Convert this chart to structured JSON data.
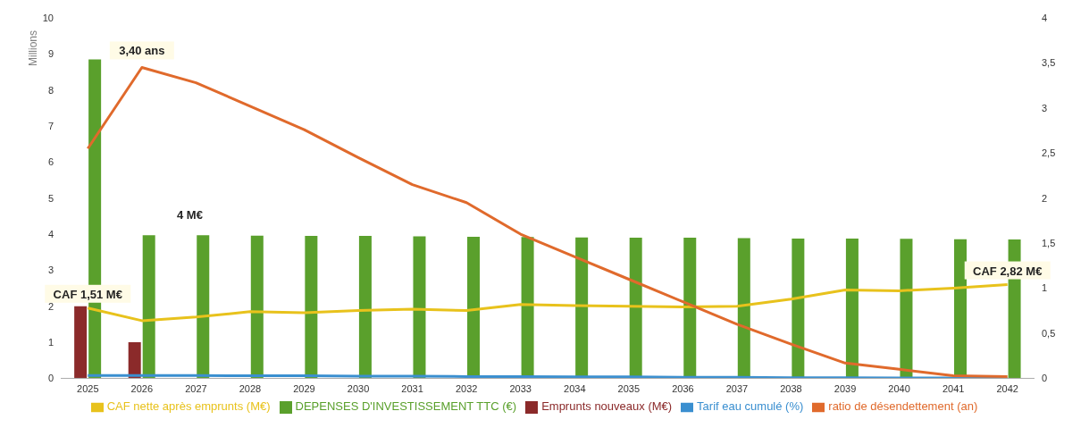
{
  "chart_data": {
    "type": "bar",
    "ylabel": "Millions",
    "categories": [
      "2025",
      "2026",
      "2027",
      "2028",
      "2029",
      "2030",
      "2031",
      "2032",
      "2033",
      "2034",
      "2035",
      "2036",
      "2037",
      "2038",
      "2039",
      "2040",
      "2041",
      "2042"
    ],
    "series": [
      {
        "name": "Emprunts nouveaux (M€)",
        "color": "#8b2a2a",
        "values": [
          2,
          1,
          null,
          null,
          null,
          null,
          null,
          null,
          null,
          null,
          null,
          null,
          null,
          null,
          null,
          null,
          null,
          null
        ]
      },
      {
        "name": "DEPENSES D'INVESTISSEMENT TTC (€)",
        "color": "#5aa02c",
        "values": [
          8.85,
          3.97,
          3.97,
          3.96,
          3.95,
          3.95,
          3.94,
          3.93,
          3.92,
          3.91,
          3.9,
          3.9,
          3.89,
          3.88,
          3.88,
          3.87,
          3.86,
          3.85
        ]
      },
      {
        "name": "CAF nette après emprunts (M€)",
        "type": "line",
        "color": "#e8c21c",
        "values": [
          1.95,
          1.6,
          1.7,
          1.85,
          1.82,
          1.88,
          1.92,
          1.88,
          2.05,
          2.02,
          2.0,
          1.98,
          2.0,
          2.2,
          2.45,
          2.43,
          2.5,
          2.6
        ]
      },
      {
        "name": "Tarif eau cumulé (%)",
        "type": "line",
        "color": "#3a8fd0",
        "values": [
          0.08,
          0.08,
          0.08,
          0.07,
          0.07,
          0.06,
          0.06,
          0.05,
          0.05,
          0.04,
          0.04,
          0.03,
          0.03,
          0.02,
          0.02,
          0.01,
          0.01,
          0
        ]
      },
      {
        "name": "ratio de désendettement (an)",
        "type": "line",
        "axis": "y2",
        "color": "#e06a2c",
        "values": [
          2.55,
          3.45,
          3.28,
          3.02,
          2.76,
          2.45,
          2.15,
          1.95,
          1.6,
          1.35,
          1.1,
          0.85,
          0.6,
          0.38,
          0.17,
          0.1,
          0.03,
          0.02
        ]
      }
    ],
    "ylim": [
      0,
      10
    ],
    "yticks": [
      0,
      1,
      2,
      3,
      4,
      5,
      6,
      7,
      8,
      9,
      10
    ],
    "y2lim": [
      0,
      4
    ],
    "y2ticks": [
      0,
      {
        "value": 0.5,
        "label": "0,5"
      },
      1,
      {
        "value": 1.5,
        "label": "1,5"
      },
      2,
      {
        "value": 2.5,
        "label": "2,5"
      },
      3,
      {
        "value": 3.5,
        "label": "3,5"
      },
      4
    ],
    "annotations": [
      {
        "text": "3,40 ans",
        "x": "2026",
        "y": 8.7
      },
      "4 M€",
      {
        "text": "CAF 1,51 M€",
        "x": "2025",
        "y": 1.95
      },
      {
        "text": "CAF 2,82 M€",
        "x": "2042",
        "y": 2.6
      }
    ],
    "legend": "bottom"
  }
}
